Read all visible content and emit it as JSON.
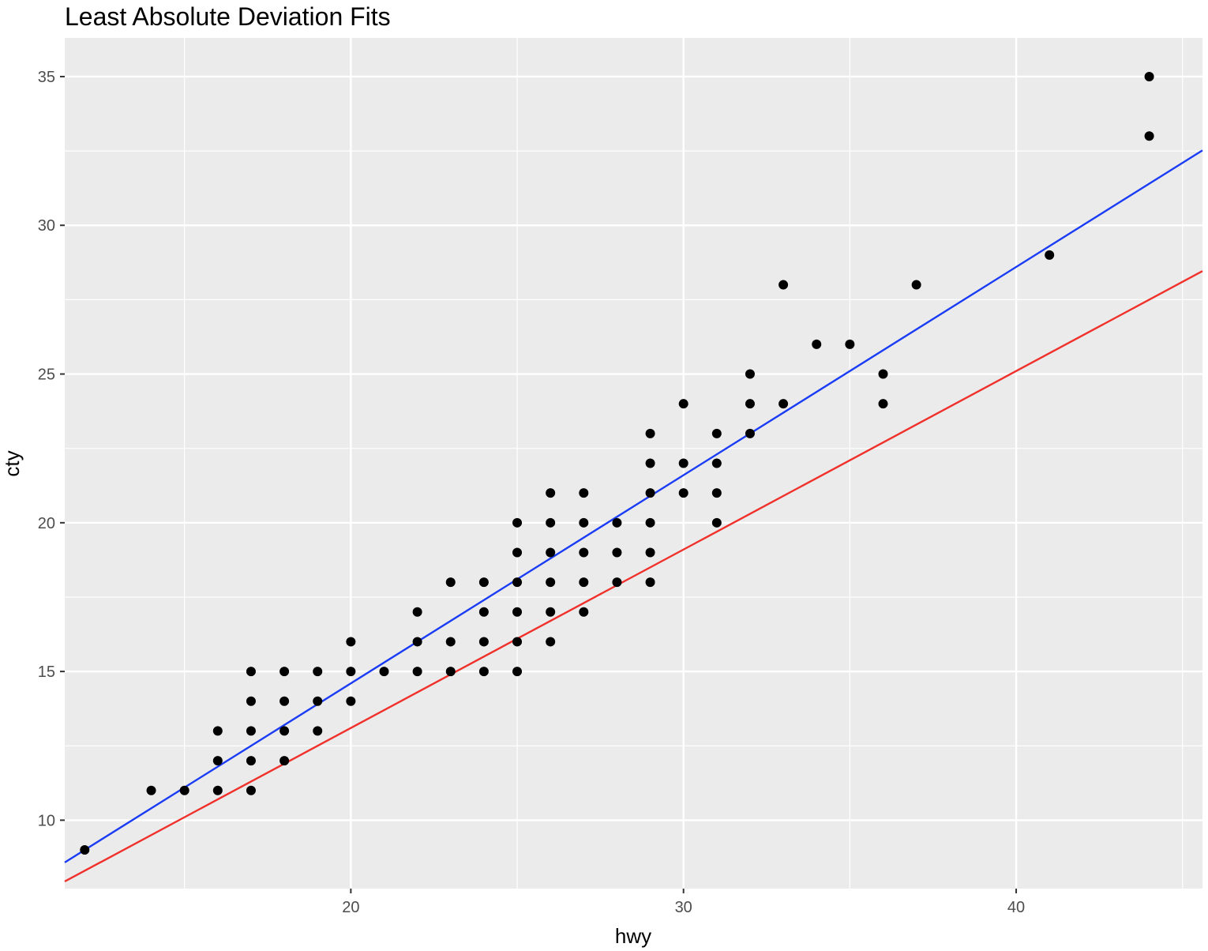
{
  "chart_data": {
    "type": "scatter",
    "title": "Least Absolute Deviation Fits",
    "xlabel": "hwy",
    "ylabel": "cty",
    "xlim": [
      11.4,
      45.6
    ],
    "ylim": [
      7.7,
      36.3
    ],
    "x_ticks": [
      20,
      30,
      40
    ],
    "x_tick_labels": [
      "20",
      "30",
      "40"
    ],
    "y_ticks": [
      10,
      15,
      20,
      25,
      30,
      35
    ],
    "y_tick_labels": [
      "10",
      "15",
      "20",
      "25",
      "30",
      "35"
    ],
    "x_minor_ticks": [
      15,
      25,
      35,
      45
    ],
    "y_minor_ticks": [
      12.5,
      17.5,
      22.5,
      27.5,
      32.5
    ],
    "grid": true,
    "legend": "none",
    "colors": {
      "panel_background": "#ebebeb",
      "grid": "#ffffff",
      "points": "#000000",
      "fit_blue": "#1a3cf5",
      "fit_red": "#f0302a"
    },
    "points": [
      [
        12,
        9
      ],
      [
        14,
        11
      ],
      [
        15,
        11
      ],
      [
        16,
        11
      ],
      [
        16,
        12
      ],
      [
        16,
        13
      ],
      [
        17,
        11
      ],
      [
        17,
        12
      ],
      [
        17,
        13
      ],
      [
        17,
        14
      ],
      [
        17,
        15
      ],
      [
        18,
        12
      ],
      [
        18,
        13
      ],
      [
        18,
        14
      ],
      [
        18,
        15
      ],
      [
        19,
        13
      ],
      [
        19,
        14
      ],
      [
        19,
        15
      ],
      [
        20,
        14
      ],
      [
        20,
        15
      ],
      [
        20,
        16
      ],
      [
        21,
        15
      ],
      [
        22,
        15
      ],
      [
        22,
        16
      ],
      [
        22,
        17
      ],
      [
        23,
        15
      ],
      [
        23,
        16
      ],
      [
        23,
        18
      ],
      [
        24,
        15
      ],
      [
        24,
        16
      ],
      [
        24,
        17
      ],
      [
        24,
        18
      ],
      [
        25,
        15
      ],
      [
        25,
        16
      ],
      [
        25,
        17
      ],
      [
        25,
        18
      ],
      [
        25,
        19
      ],
      [
        25,
        20
      ],
      [
        26,
        16
      ],
      [
        26,
        17
      ],
      [
        26,
        18
      ],
      [
        26,
        19
      ],
      [
        26,
        20
      ],
      [
        26,
        21
      ],
      [
        27,
        17
      ],
      [
        27,
        18
      ],
      [
        27,
        19
      ],
      [
        27,
        20
      ],
      [
        27,
        21
      ],
      [
        28,
        18
      ],
      [
        28,
        19
      ],
      [
        28,
        20
      ],
      [
        29,
        18
      ],
      [
        29,
        19
      ],
      [
        29,
        20
      ],
      [
        29,
        21
      ],
      [
        29,
        22
      ],
      [
        29,
        23
      ],
      [
        30,
        21
      ],
      [
        30,
        22
      ],
      [
        30,
        24
      ],
      [
        31,
        20
      ],
      [
        31,
        21
      ],
      [
        31,
        22
      ],
      [
        31,
        23
      ],
      [
        32,
        23
      ],
      [
        32,
        24
      ],
      [
        32,
        25
      ],
      [
        33,
        24
      ],
      [
        33,
        28
      ],
      [
        34,
        26
      ],
      [
        35,
        26
      ],
      [
        36,
        24
      ],
      [
        36,
        25
      ],
      [
        37,
        28
      ],
      [
        41,
        29
      ],
      [
        44,
        33
      ],
      [
        44,
        35
      ]
    ],
    "fit_lines": [
      {
        "color": "#1a3cf5",
        "slope": 0.7,
        "intercept": 0.6
      },
      {
        "color": "#f0302a",
        "slope": 0.6,
        "intercept": 1.1
      }
    ]
  }
}
